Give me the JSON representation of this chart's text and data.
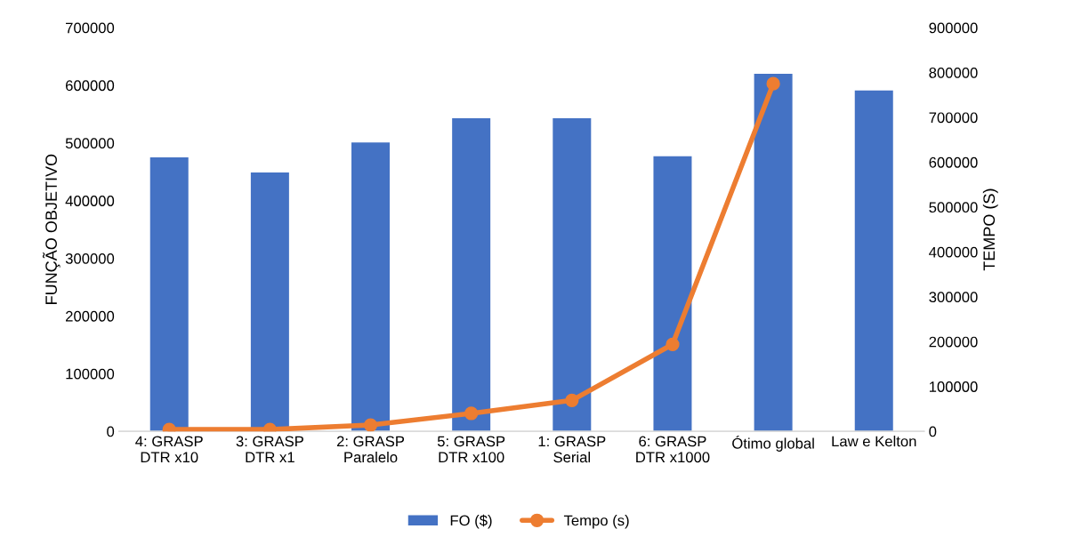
{
  "chart_data": {
    "type": "bar",
    "categories": [
      "4: GRASP\nDTR x10",
      "3: GRASP\nDTR x1",
      "2: GRASP\nParalelo",
      "5: GRASP\nDTR x100",
      "1: GRASP\nSerial",
      "6: GRASP\nDTR x1000",
      "Ótimo global",
      "Law e Kelton"
    ],
    "series": [
      {
        "name": "FO ($)",
        "color": "#4472c4",
        "values": [
          475000,
          449000,
          501000,
          543000,
          543000,
          477000,
          620000,
          591000
        ]
      },
      {
        "name": "Tempo (s)",
        "type": "line",
        "axis": "y2",
        "color": "#ed7d31",
        "marker": "circle",
        "values": [
          4000,
          4000,
          14000,
          40000,
          69000,
          194000,
          775000,
          null
        ]
      }
    ],
    "ylabel": "FUNÇÃO OBJETIVO",
    "y2label": "TEMPO (S)",
    "ylim": [
      0,
      700000
    ],
    "yticks": [
      0,
      100000,
      200000,
      300000,
      400000,
      500000,
      600000,
      700000
    ],
    "y2lim": [
      0,
      900000
    ],
    "y2ticks": [
      0,
      100000,
      200000,
      300000,
      400000,
      500000,
      600000,
      700000,
      800000,
      900000
    ],
    "grid": false,
    "legend": "bottom"
  }
}
